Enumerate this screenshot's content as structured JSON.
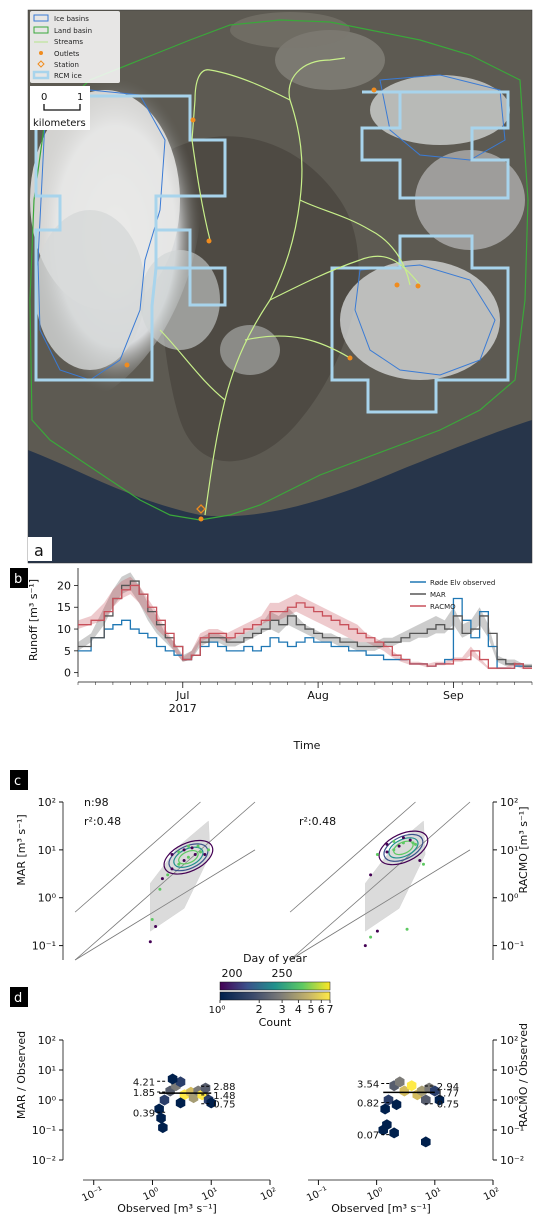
{
  "panels": {
    "a": {
      "label": "a",
      "legend": {
        "ice_basins": "Ice basins",
        "land_basin": "Land basin",
        "streams": "Streams",
        "outlets": "Outlets",
        "station": "Station",
        "rcm_ice": "RCM ice"
      },
      "scalebar": {
        "start": "0",
        "end": "1",
        "unit": "kilometers"
      },
      "colors": {
        "ice_basins": "#3a7bd5",
        "land_basin": "#3aa83a",
        "streams": "#c8f08a",
        "outlets": "#f08c1e",
        "station": "#f08c1e",
        "rcm_ice": "#a8d4ec"
      }
    },
    "b": {
      "label": "b"
    },
    "c": {
      "label": "c"
    },
    "d": {
      "label": "d"
    }
  },
  "chart_data": [
    {
      "type": "line",
      "panel": "b",
      "xlabel": "Time",
      "ylabel": "Runoff [m³ s⁻¹]",
      "ylim": [
        -1,
        24
      ],
      "yticks": [
        0,
        5,
        10,
        15,
        20
      ],
      "x_range_doy": [
        158,
        262
      ],
      "xticks": [
        {
          "doy": 182,
          "label": "Jul",
          "sub": "2017"
        },
        {
          "doy": 213,
          "label": "Aug",
          "sub": ""
        },
        {
          "doy": 244,
          "label": "Sep",
          "sub": ""
        }
      ],
      "legend": {
        "position": "top-right",
        "entries": [
          "Røde Elv observed",
          "MAR",
          "RACMO"
        ]
      },
      "series": [
        {
          "name": "Røde Elv observed",
          "color": "#1f77b4",
          "x_doy": [
            158,
            161,
            164,
            166,
            168,
            170,
            172,
            174,
            176,
            178,
            180,
            182,
            184,
            186,
            188,
            190,
            192,
            194,
            196,
            198,
            200,
            202,
            204,
            206,
            208,
            210,
            212,
            214,
            216,
            218,
            220,
            222,
            224,
            226,
            228,
            230,
            232,
            234,
            236,
            238,
            240,
            242,
            244,
            246,
            248,
            250,
            252,
            254,
            256,
            258,
            260,
            262
          ],
          "values": [
            5,
            8,
            10,
            11,
            12,
            10,
            9,
            8,
            6,
            5,
            4,
            3,
            4,
            6,
            7,
            6,
            5,
            5,
            6,
            5,
            6,
            8,
            7,
            6,
            7,
            8,
            7,
            7,
            6,
            6,
            5,
            5,
            4,
            4,
            3,
            3,
            3,
            2,
            2,
            1.5,
            2,
            3,
            17,
            12,
            8,
            14,
            6,
            1,
            1,
            1.5,
            1.5,
            1.5
          ]
        },
        {
          "name": "MAR",
          "color": "#555555",
          "x_doy": [
            158,
            161,
            164,
            166,
            168,
            170,
            172,
            174,
            176,
            178,
            180,
            182,
            184,
            186,
            188,
            190,
            192,
            194,
            196,
            198,
            200,
            202,
            204,
            206,
            208,
            210,
            212,
            214,
            216,
            218,
            220,
            222,
            224,
            226,
            228,
            230,
            232,
            234,
            236,
            238,
            240,
            242,
            244,
            246,
            248,
            250,
            252,
            254,
            256,
            258,
            260,
            262
          ],
          "values": [
            6,
            8,
            13,
            17,
            20,
            21,
            18,
            14,
            11,
            8,
            6,
            3,
            4,
            7,
            8,
            8,
            7,
            7,
            8,
            9,
            10,
            12,
            11,
            13,
            11,
            10,
            9,
            8,
            8,
            7,
            7,
            6,
            6,
            6,
            7,
            7,
            8,
            9,
            9,
            10,
            11,
            10,
            13,
            9,
            10,
            13,
            9,
            3,
            2,
            2,
            1.5,
            1.5
          ],
          "band_low": [
            5,
            7,
            11,
            15,
            18,
            19,
            16,
            12,
            9,
            7,
            5,
            2.5,
            3,
            6,
            7,
            7,
            6,
            6,
            7,
            8,
            9,
            10,
            9,
            11,
            10,
            9,
            8,
            7,
            7,
            6,
            6,
            5,
            5,
            5,
            6,
            6,
            7,
            7,
            8,
            8,
            9,
            9,
            11,
            8,
            9,
            11,
            8,
            2.5,
            1.5,
            1.5,
            1.2,
            1.2
          ],
          "band_high": [
            7,
            9,
            15,
            19,
            22,
            23,
            20,
            16,
            13,
            9,
            7,
            4,
            5,
            8,
            9,
            9,
            8,
            8,
            9,
            10,
            11,
            14,
            13,
            15,
            13,
            11,
            10,
            9,
            9,
            8,
            8,
            7,
            7,
            7,
            8,
            8,
            9,
            10,
            11,
            12,
            13,
            12,
            15,
            11,
            12,
            15,
            11,
            4,
            3,
            3,
            2,
            2
          ]
        },
        {
          "name": "RACMO",
          "color": "#c8505a",
          "x_doy": [
            158,
            161,
            164,
            166,
            168,
            170,
            172,
            174,
            176,
            178,
            180,
            182,
            184,
            186,
            188,
            190,
            192,
            194,
            196,
            198,
            200,
            202,
            204,
            206,
            208,
            210,
            212,
            214,
            216,
            218,
            220,
            222,
            224,
            226,
            228,
            230,
            232,
            234,
            236,
            238,
            240,
            242,
            244,
            246,
            248,
            250,
            252,
            254,
            256,
            258,
            260,
            262
          ],
          "values": [
            11,
            12,
            14,
            17,
            19,
            20,
            18,
            15,
            12,
            9,
            6,
            3,
            4,
            8,
            9,
            9,
            8,
            9,
            10,
            11,
            12,
            14,
            14,
            15,
            16,
            15,
            14,
            13,
            12,
            11,
            10,
            9,
            8,
            7,
            6,
            4,
            3,
            2,
            2,
            1.5,
            2,
            2,
            3,
            3,
            5,
            3,
            1,
            1,
            1,
            2,
            1,
            1
          ],
          "band_low": [
            10,
            11,
            12,
            15,
            17,
            18,
            16,
            13,
            10,
            8,
            5,
            2.5,
            3,
            7,
            8,
            8,
            7,
            8,
            9,
            10,
            11,
            12,
            12,
            13,
            14,
            13,
            12,
            11,
            10,
            9,
            8,
            7,
            7,
            6,
            5,
            3.5,
            2.5,
            1.8,
            1.8,
            1.2,
            1.7,
            1.7,
            2.5,
            2.5,
            4,
            2.5,
            0.8,
            0.8,
            0.8,
            1.5,
            0.8,
            0.8
          ],
          "band_high": [
            12,
            13,
            16,
            19,
            21,
            22,
            20,
            17,
            14,
            10,
            7,
            3.5,
            5,
            9,
            10,
            10,
            9,
            10,
            11,
            12,
            13,
            16,
            16,
            17,
            18,
            17,
            16,
            15,
            14,
            13,
            12,
            11,
            9,
            8,
            7,
            5,
            3.5,
            2.5,
            2.5,
            2,
            2.5,
            2.5,
            3.5,
            3.5,
            6,
            3.5,
            1.3,
            1.3,
            1.3,
            2.5,
            1.3,
            1.3
          ]
        }
      ]
    },
    {
      "type": "scatter",
      "panel": "c-left",
      "ylabel": "MAR [m³ s⁻¹]",
      "xlim": [
        0.03,
        100
      ],
      "ylim": [
        0.05,
        100
      ],
      "scale": "log",
      "yticks": [
        "10⁻¹",
        "10⁰",
        "10¹",
        "10²"
      ],
      "annotation": {
        "n": "n:98",
        "r2": "r²:0.48"
      },
      "points": [
        [
          1.2,
          0.12
        ],
        [
          1.3,
          0.35
        ],
        [
          1.5,
          0.25
        ],
        [
          1.8,
          1.5
        ],
        [
          2,
          2.5
        ],
        [
          2.5,
          3
        ],
        [
          3,
          4
        ],
        [
          4,
          5
        ],
        [
          5,
          6
        ],
        [
          6,
          7
        ],
        [
          8,
          8
        ],
        [
          10,
          9
        ],
        [
          12,
          8
        ],
        [
          14,
          10
        ],
        [
          3,
          8
        ],
        [
          4,
          9
        ],
        [
          5,
          10
        ],
        [
          6,
          12
        ],
        [
          7,
          11
        ],
        [
          9,
          12
        ]
      ]
    },
    {
      "type": "scatter",
      "panel": "c-right",
      "ylabel": "RACMO [m³ s⁻¹]",
      "xlim": [
        0.03,
        100
      ],
      "ylim": [
        0.05,
        100
      ],
      "scale": "log",
      "yticks": [
        "10⁻¹",
        "10⁰",
        "10¹",
        "10²"
      ],
      "annotation": {
        "r2": "r²:0.48"
      },
      "points": [
        [
          1.2,
          0.1
        ],
        [
          1.5,
          0.15
        ],
        [
          2,
          0.2
        ],
        [
          7,
          0.22
        ],
        [
          1.5,
          3
        ],
        [
          2,
          8
        ],
        [
          3,
          9
        ],
        [
          4,
          10
        ],
        [
          5,
          12
        ],
        [
          6,
          14
        ],
        [
          8,
          16
        ],
        [
          10,
          13
        ],
        [
          12,
          6
        ],
        [
          14,
          5
        ],
        [
          3,
          13
        ],
        [
          4,
          15
        ],
        [
          6,
          18
        ],
        [
          9,
          14
        ]
      ]
    },
    {
      "type": "heatmap",
      "panel": "d-left",
      "xlabel": "Observed [m³ s⁻¹]",
      "ylabel": "MAR / Observed",
      "scale": "log",
      "xticks": [
        "10⁻¹",
        "10⁰",
        "10¹",
        "10²"
      ],
      "yticks": [
        "10⁻²",
        "10⁻¹",
        "10⁰",
        "10¹",
        "10²"
      ],
      "annotations": [
        "4.21",
        "2.88",
        "1.85",
        "1.48",
        "0.75",
        "0.39"
      ],
      "cells": [
        [
          1.5,
          0.12,
          1
        ],
        [
          1.4,
          0.25,
          1
        ],
        [
          1.3,
          0.5,
          1
        ],
        [
          1.6,
          1,
          2
        ],
        [
          2,
          2,
          3
        ],
        [
          2.5,
          3,
          4
        ],
        [
          3,
          4,
          2
        ],
        [
          3.5,
          1.5,
          7
        ],
        [
          4.5,
          1.8,
          6
        ],
        [
          5,
          1.2,
          5
        ],
        [
          6,
          2,
          4
        ],
        [
          7,
          1.5,
          7
        ],
        [
          8,
          2.5,
          3
        ],
        [
          9,
          1,
          2
        ],
        [
          10,
          0.8,
          1
        ],
        [
          2.2,
          5,
          1
        ],
        [
          3,
          0.8,
          1
        ]
      ]
    },
    {
      "type": "heatmap",
      "panel": "d-right",
      "xlabel": "Observed [m³ s⁻¹]",
      "ylabel": "RACMO / Observed",
      "scale": "log",
      "xticks": [
        "10⁻¹",
        "10⁰",
        "10¹",
        "10²"
      ],
      "yticks": [
        "10⁻²",
        "10⁻¹",
        "10⁰",
        "10¹",
        "10²"
      ],
      "annotations": [
        "3.54",
        "2.94",
        "1.77",
        "0.82",
        "0.75",
        "0.07"
      ],
      "cells": [
        [
          1.3,
          0.1,
          1
        ],
        [
          1.5,
          0.15,
          1
        ],
        [
          2,
          0.08,
          1
        ],
        [
          7,
          0.04,
          1
        ],
        [
          1.4,
          0.5,
          1
        ],
        [
          1.6,
          1,
          2
        ],
        [
          2,
          3,
          3
        ],
        [
          2.5,
          4,
          4
        ],
        [
          3,
          2,
          6
        ],
        [
          4,
          3,
          7
        ],
        [
          5,
          1.5,
          6
        ],
        [
          6,
          2,
          5
        ],
        [
          7,
          1,
          3
        ],
        [
          8,
          2.5,
          4
        ],
        [
          10,
          2,
          2
        ],
        [
          12,
          1,
          1
        ],
        [
          2.2,
          0.7,
          1
        ]
      ]
    }
  ],
  "colorbars": {
    "day_of_year": {
      "title": "Day of year",
      "ticks": [
        "200",
        "250"
      ],
      "colormap": "viridis"
    },
    "count": {
      "title": "Count",
      "ticks": [
        "10⁰",
        "2",
        "3",
        "4",
        "5",
        "6",
        "7"
      ],
      "colormap": "cividis"
    }
  }
}
